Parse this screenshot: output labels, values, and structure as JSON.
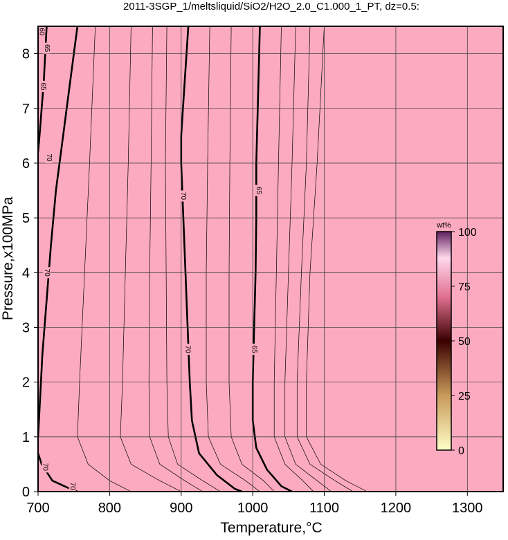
{
  "chart_data": {
    "type": "contour",
    "title": "2011-3SGP_1/meltsliquid/SiO2/H2O_2.0_C1.000_1_PT, dz=0.5:",
    "x_label": "Temperature,°C",
    "y_label": "Pressure,x100MPa",
    "xlim": [
      700,
      1350
    ],
    "ylim": [
      0,
      8.5
    ],
    "xticks": [
      700,
      800,
      900,
      1000,
      1100,
      1200,
      1300
    ],
    "yticks": [
      0,
      1,
      2,
      3,
      4,
      5,
      6,
      7,
      8
    ],
    "grid": true,
    "background": "#fcaac0",
    "contour_color": "#000000",
    "contours": [
      {
        "level": 70,
        "x": [
          755,
          745,
          735,
          725,
          718,
          712,
          706,
          702,
          700
        ],
        "y": [
          8.5,
          7.5,
          6.5,
          5.5,
          4.5,
          3.5,
          2.5,
          1.5,
          1.0
        ]
      },
      {
        "level": 70,
        "x": [
          910,
          905,
          900,
          900,
          903,
          906,
          909,
          912,
          915,
          925,
          950,
          975,
          985
        ],
        "y": [
          8.5,
          7.5,
          6.5,
          6.0,
          5.0,
          4.0,
          3.0,
          2.0,
          1.3,
          0.7,
          0.3,
          0.05,
          0
        ]
      },
      {
        "level": 65,
        "x": [
          1010,
          1007,
          1005,
          1005,
          1004,
          1002,
          1000,
          1000,
          1005,
          1020,
          1040,
          1055
        ],
        "y": [
          8.5,
          7,
          6,
          5,
          4,
          3,
          2,
          1.3,
          0.8,
          0.4,
          0.1,
          0
        ]
      },
      {
        "level": 70,
        "x": [
          700,
          705,
          720,
          740,
          755
        ],
        "y": [
          0.7,
          0.5,
          0.2,
          0.08,
          0
        ]
      },
      {
        "level": 65,
        "x": [
          712,
          708,
          702,
          700
        ],
        "y": [
          8.5,
          7.5,
          6.5,
          6.2
        ]
      }
    ],
    "thin_contours": [
      {
        "x": [
          780,
          772,
          765,
          758,
          755,
          770,
          800,
          830
        ],
        "y": [
          8.5,
          6,
          4,
          2,
          1,
          0.5,
          0.2,
          0
        ]
      },
      {
        "x": [
          830,
          826,
          822,
          818,
          815,
          830,
          870,
          900
        ],
        "y": [
          8.5,
          6,
          4,
          2,
          1,
          0.5,
          0.2,
          0
        ]
      },
      {
        "x": [
          860,
          858,
          856,
          855,
          856,
          870,
          905,
          930
        ],
        "y": [
          8.5,
          6,
          4,
          2,
          1,
          0.5,
          0.2,
          0
        ]
      },
      {
        "x": [
          880,
          878,
          879,
          880,
          882,
          895,
          930,
          955
        ],
        "y": [
          8.5,
          6,
          4,
          2,
          1,
          0.5,
          0.2,
          0
        ]
      },
      {
        "x": [
          940,
          937,
          935,
          935,
          938,
          955,
          990,
          1010
        ],
        "y": [
          8.5,
          6,
          4,
          2,
          1,
          0.5,
          0.2,
          0
        ]
      },
      {
        "x": [
          970,
          968,
          967,
          967,
          970,
          985,
          1015,
          1030
        ],
        "y": [
          8.5,
          6,
          4,
          2,
          1,
          0.5,
          0.2,
          0
        ]
      },
      {
        "x": [
          1040,
          1036,
          1033,
          1030,
          1030,
          1045,
          1070,
          1085
        ],
        "y": [
          8.5,
          6,
          4,
          2,
          1,
          0.5,
          0.2,
          0
        ]
      },
      {
        "x": [
          1060,
          1055,
          1050,
          1045,
          1045,
          1060,
          1090,
          1110
        ],
        "y": [
          8.5,
          6,
          4,
          2,
          1,
          0.5,
          0.2,
          0
        ]
      },
      {
        "x": [
          1080,
          1075,
          1068,
          1062,
          1062,
          1080,
          1115,
          1140
        ],
        "y": [
          8.5,
          6,
          4,
          2,
          1,
          0.5,
          0.2,
          0
        ]
      },
      {
        "x": [
          1100,
          1090,
          1080,
          1075,
          1075,
          1095,
          1130,
          1160
        ],
        "y": [
          8.5,
          6,
          4,
          2,
          1,
          0.5,
          0.2,
          0
        ]
      }
    ],
    "contour_labels": [
      {
        "text": "70",
        "x": 715,
        "y": 6.1
      },
      {
        "text": "70",
        "x": 712,
        "y": 4.0
      },
      {
        "text": "65",
        "x": 707,
        "y": 7.4
      },
      {
        "text": "65",
        "x": 712,
        "y": 8.1
      },
      {
        "text": "60",
        "x": 705,
        "y": 8.4
      },
      {
        "text": "70",
        "x": 903,
        "y": 5.4
      },
      {
        "text": "70",
        "x": 909,
        "y": 2.6
      },
      {
        "text": "65",
        "x": 1008,
        "y": 5.5
      },
      {
        "text": "65",
        "x": 1002,
        "y": 2.6
      },
      {
        "text": "70",
        "x": 710,
        "y": 0.45
      },
      {
        "text": "70",
        "x": 748,
        "y": 0.1
      }
    ],
    "colorbar": {
      "label": "wt%",
      "clim": [
        0,
        100
      ],
      "ticks": [
        0,
        25,
        50,
        75,
        100
      ],
      "colormap": [
        {
          "value": 0,
          "color": "#ffffc8"
        },
        {
          "value": 25,
          "color": "#c89a5a"
        },
        {
          "value": 50,
          "color": "#3a0000"
        },
        {
          "value": 70,
          "color": "#e07090"
        },
        {
          "value": 88,
          "color": "#ffd8ec"
        },
        {
          "value": 100,
          "color": "#602060"
        }
      ]
    }
  }
}
